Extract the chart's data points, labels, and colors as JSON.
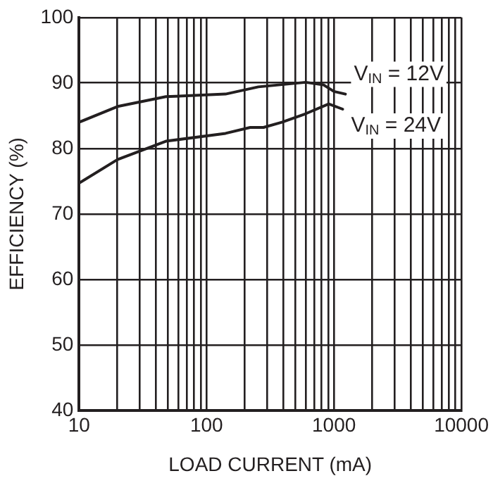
{
  "chart_data": {
    "type": "line",
    "xlabel": "LOAD CURRENT (mA)",
    "ylabel": "EFFICIENCY (%)",
    "log": "x",
    "xlim": [
      10,
      10000
    ],
    "xticks": [
      10,
      100,
      1000,
      10000
    ],
    "ylim": [
      40,
      100
    ],
    "yticks": [
      40,
      50,
      60,
      70,
      80,
      90,
      100
    ],
    "grid": true,
    "legend": false,
    "marker": "none",
    "line_style": "solid",
    "series": [
      {
        "name": "V$_{IN}$ = 12V",
        "color": "#231f20",
        "x": [
          10,
          20,
          48,
          141,
          255,
          600,
          830,
          1000,
          1230
        ],
        "values": [
          84.0,
          86.4,
          87.9,
          88.3,
          89.4,
          90.1,
          89.7,
          88.7,
          88.3
        ]
      },
      {
        "name": "V$_{IN}$ = 24V",
        "color": "#231f20",
        "x": [
          10,
          20,
          48,
          141,
          220,
          280,
          390,
          600,
          910,
          1170
        ],
        "values": [
          74.7,
          78.3,
          81.1,
          82.3,
          83.2,
          83.2,
          84.0,
          85.3,
          86.8,
          86.0
        ]
      }
    ]
  }
}
